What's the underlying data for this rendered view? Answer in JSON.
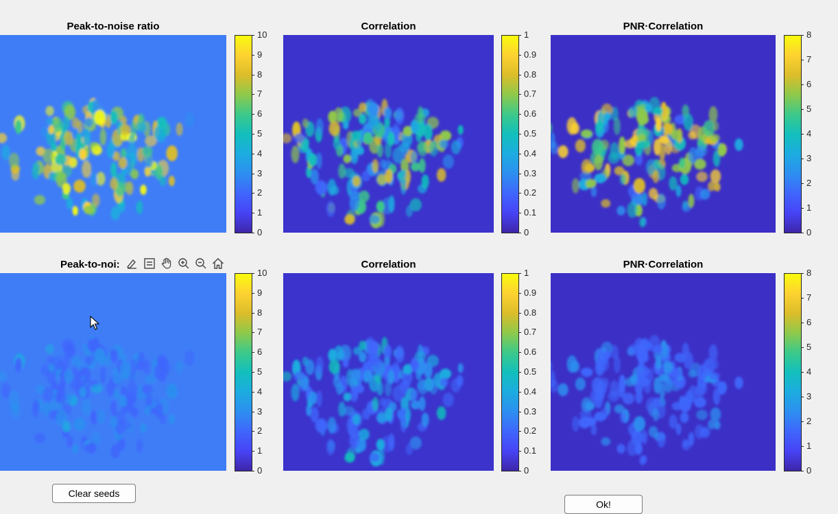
{
  "panels": [
    {
      "title": "Peak-to-noise ratio",
      "ticks": [
        "10",
        "9",
        "8",
        "7",
        "6",
        "5",
        "4",
        "3",
        "2",
        "1",
        "0"
      ],
      "intensity": 1.0,
      "bg": "#3f7df7"
    },
    {
      "title": "Correlation",
      "ticks": [
        "1",
        "0.9",
        "0.8",
        "0.7",
        "0.6",
        "0.5",
        "0.4",
        "0.3",
        "0.2",
        "0.1",
        "0"
      ],
      "intensity": 0.8,
      "bg": "#3b33cc"
    },
    {
      "title": "PNR·Correlation",
      "ticks": [
        "8",
        "7",
        "6",
        "5",
        "4",
        "3",
        "2",
        "1",
        "0"
      ],
      "intensity": 0.9,
      "bg": "#3c2fc6"
    },
    {
      "title": "Peak-to-noi:",
      "ticks": [
        "10",
        "9",
        "8",
        "7",
        "6",
        "5",
        "4",
        "3",
        "2",
        "1",
        "0"
      ],
      "intensity": 0.35,
      "bg": "#3f7df7"
    },
    {
      "title": "Correlation",
      "ticks": [
        "1",
        "0.9",
        "0.8",
        "0.7",
        "0.6",
        "0.5",
        "0.4",
        "0.3",
        "0.2",
        "0.1",
        "0"
      ],
      "intensity": 0.45,
      "bg": "#3b33cc"
    },
    {
      "title": "PNR·Correlation",
      "ticks": [
        "8",
        "7",
        "6",
        "5",
        "4",
        "3",
        "2",
        "1",
        "0"
      ],
      "intensity": 0.3,
      "bg": "#3c2fc6"
    }
  ],
  "toolbar": {
    "icons": [
      "brush-icon",
      "datatip-icon",
      "pan-hand-icon",
      "zoom-in-icon",
      "zoom-out-icon",
      "home-icon"
    ]
  },
  "buttons": {
    "clear_seeds": "Clear seeds",
    "ok": "Ok!"
  },
  "colors": {
    "parula_low": "#3e26a8",
    "parula_high": "#f9fb0e",
    "window_bg": "#f0f0f0"
  }
}
